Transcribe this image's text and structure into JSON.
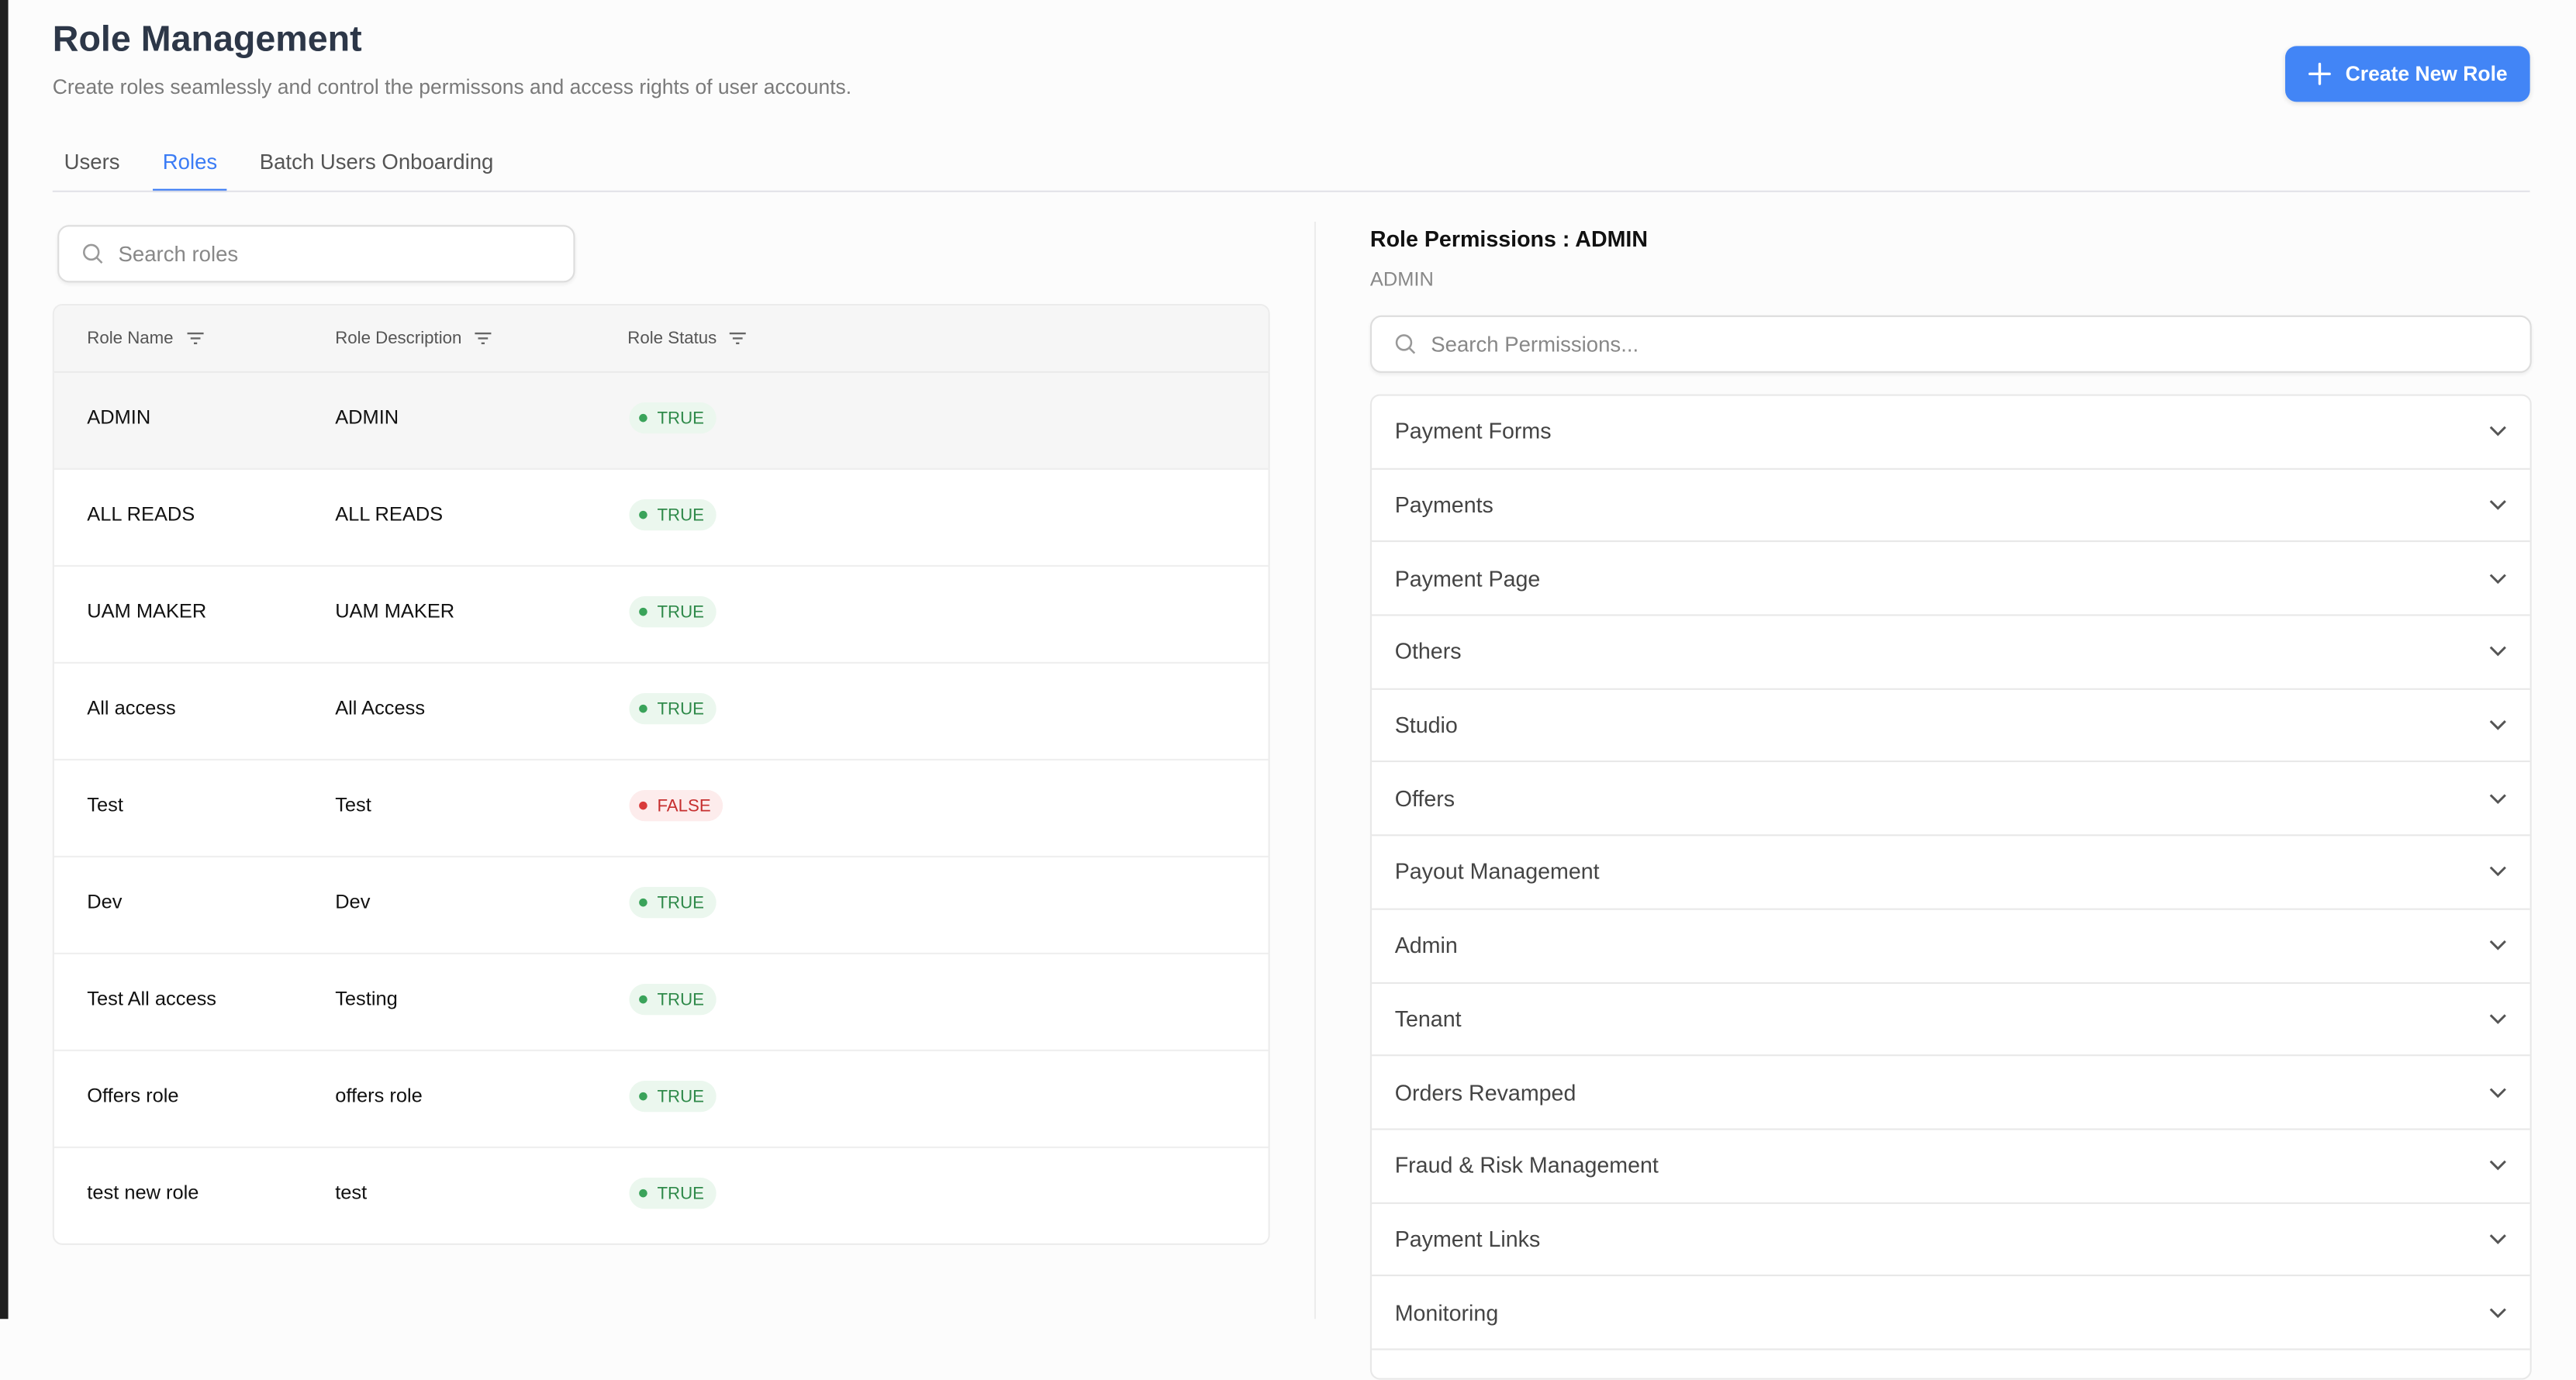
{
  "header": {
    "title": "Role Management",
    "subtitle": "Create roles seamlessly and control the permissons and access rights of user accounts.",
    "create_button": "Create New Role"
  },
  "tabs": [
    {
      "label": "Users"
    },
    {
      "label": "Roles",
      "active": true
    },
    {
      "label": "Batch Users Onboarding"
    }
  ],
  "roles_search": {
    "placeholder": "Search roles"
  },
  "table": {
    "columns": [
      "Role Name",
      "Role Description",
      "Role Status"
    ],
    "rows": [
      {
        "name": "ADMIN",
        "description": "ADMIN",
        "status": "TRUE",
        "selected": true
      },
      {
        "name": "ALL READS",
        "description": "ALL READS",
        "status": "TRUE"
      },
      {
        "name": "UAM MAKER",
        "description": "UAM MAKER",
        "status": "TRUE"
      },
      {
        "name": "All access",
        "description": "All Access",
        "status": "TRUE"
      },
      {
        "name": "Test",
        "description": "Test",
        "status": "FALSE"
      },
      {
        "name": "Dev",
        "description": "Dev",
        "status": "TRUE"
      },
      {
        "name": "Test All access",
        "description": "Testing",
        "status": "TRUE"
      },
      {
        "name": "Offers role",
        "description": "offers role",
        "status": "TRUE"
      },
      {
        "name": "test new role",
        "description": "test",
        "status": "TRUE"
      }
    ]
  },
  "permissions": {
    "title": "Role Permissions : ADMIN",
    "subtitle": "ADMIN",
    "search_placeholder": "Search Permissions...",
    "groups": [
      "Payment Forms",
      "Payments",
      "Payment Page",
      "Others",
      "Studio",
      "Offers",
      "Payout Management",
      "Admin",
      "Tenant",
      "Orders Revamped",
      "Fraud & Risk Management",
      "Payment Links",
      "Monitoring"
    ]
  },
  "colors": {
    "accent": "#4285f6",
    "true_badge": "#2f8a4a",
    "false_badge": "#c62f2f"
  }
}
